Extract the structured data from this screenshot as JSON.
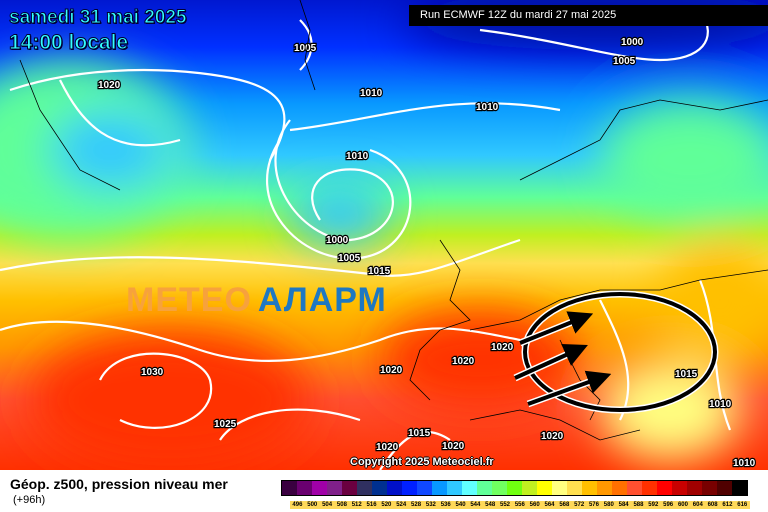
{
  "header": {
    "date": "samedi 31 mai 2025",
    "time": "14:00 locale",
    "run": "Run ECMWF 12Z du mardi 27 mai 2025"
  },
  "logo": {
    "part1": "METEO",
    "part2": "АЛАРМ"
  },
  "copyright": "Copyright 2025 Meteociel.fr",
  "legend": {
    "title": "Géop. z500, pression niveau mer",
    "lead": "(+96h)",
    "ticks": [
      "496",
      "500",
      "504",
      "508",
      "512",
      "516",
      "520",
      "524",
      "528",
      "532",
      "536",
      "540",
      "544",
      "548",
      "552",
      "556",
      "560",
      "564",
      "568",
      "572",
      "576",
      "580",
      "584",
      "588",
      "592",
      "596",
      "600",
      "604",
      "608",
      "612",
      "616"
    ],
    "colors": [
      "#3a0040",
      "#6a0070",
      "#a000a8",
      "#80208a",
      "#6a0040",
      "#303060",
      "#003090",
      "#0010c8",
      "#0020ff",
      "#1048ff",
      "#0898ff",
      "#30c8ff",
      "#60ffff",
      "#60ff98",
      "#70ff60",
      "#70ff10",
      "#c0f020",
      "#ffff00",
      "#ffff80",
      "#ffe050",
      "#ffc000",
      "#ff9800",
      "#ff7000",
      "#ff5030",
      "#ff3000",
      "#ff0000",
      "#c80000",
      "#a00000",
      "#780000",
      "#500000",
      "#000000"
    ]
  },
  "isobars": [
    "1005",
    "1000",
    "1005",
    "1020",
    "1010",
    "1010",
    "1010",
    "1000",
    "1005",
    "1015",
    "1020",
    "1020",
    "1030",
    "1020",
    "1025",
    "1015",
    "1020",
    "1020",
    "1015",
    "1010",
    "1020",
    "1010"
  ],
  "colors": {
    "arrow": "#000000",
    "isobar": "#ffffff"
  }
}
